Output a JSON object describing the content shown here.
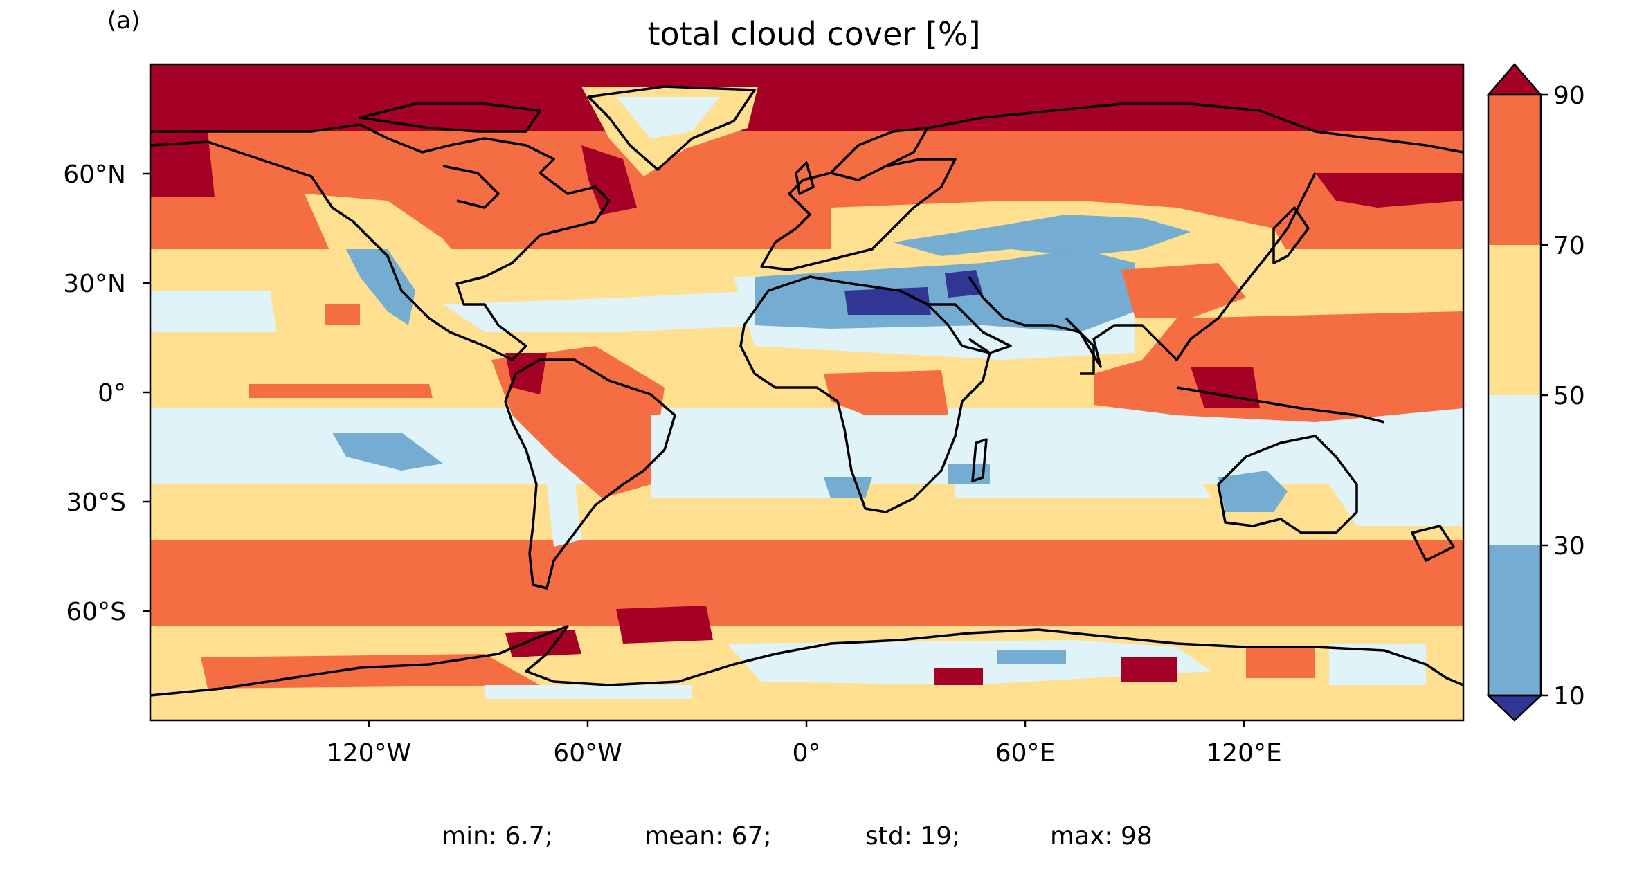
{
  "panel_label": "(a)",
  "title": "total cloud cover [%]",
  "map": {
    "projection": "PlateCarree",
    "lon_range": [
      -180,
      180
    ],
    "lat_range": [
      -90,
      90
    ],
    "x_ticks": [
      "120°W",
      "60°W",
      "0°",
      "60°E",
      "120°E"
    ],
    "y_ticks": [
      "60°N",
      "30°N",
      "0°",
      "30°S",
      "60°S"
    ],
    "coastlines": true,
    "colormap": "RdYlBu_r (discrete)"
  },
  "colorbar": {
    "ticks": [
      "90",
      "70",
      "50",
      "30",
      "10"
    ],
    "extend": "both",
    "levels": [
      10,
      30,
      50,
      70,
      90
    ],
    "colors": {
      "below_10": "#313695",
      "10_30": "#74add1",
      "30_50": "#e0f3f8",
      "50_70": "#fee090",
      "70_90": "#f46d43",
      "above_90": "#a50026"
    }
  },
  "stats": {
    "min": "min: 6.7;",
    "mean": "mean: 67;",
    "std": "std: 19;",
    "max": "max: 98"
  }
}
